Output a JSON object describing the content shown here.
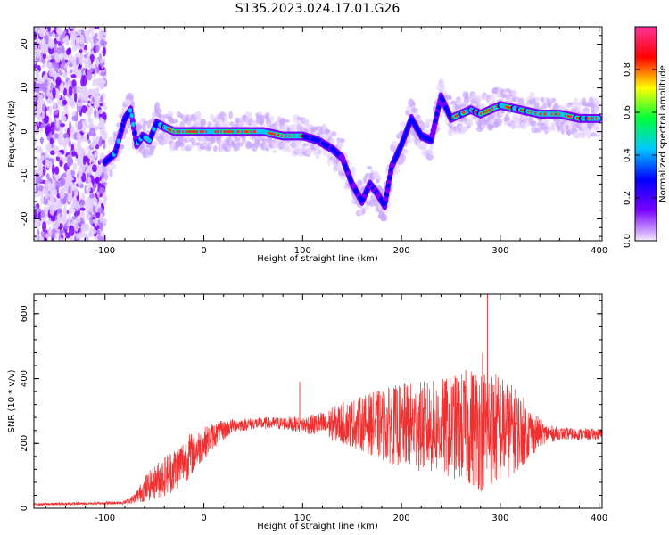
{
  "title": "S135.2023.024.17.01.G26",
  "chart_data": [
    {
      "type": "heatmap",
      "xlabel": "Height of straight line (km)",
      "ylabel": "Frequency (Hz)",
      "xlim": [
        -172,
        403
      ],
      "ylim": [
        -25,
        24
      ],
      "x_ticks": [
        -100,
        0,
        100,
        200,
        300,
        400
      ],
      "y_ticks": [
        -20,
        -10,
        0,
        10,
        20
      ],
      "colorbar": {
        "label": "Normalized spectral amplitude",
        "range": [
          0,
          1
        ],
        "ticks": [
          0.0,
          0.2,
          0.4,
          0.6,
          0.8
        ],
        "colors": [
          "#f4e8ff",
          "#7a00ff",
          "#0000ff",
          "#00c8ff",
          "#00ff3c",
          "#ffff00",
          "#ff0000",
          "#ff3399"
        ]
      },
      "ridge": {
        "x": [
          -100,
          -90,
          -80,
          -74,
          -68,
          -62,
          -55,
          -48,
          -40,
          -30,
          -20,
          0,
          20,
          40,
          60,
          80,
          100,
          115,
          130,
          140,
          150,
          160,
          168,
          175,
          183,
          190,
          200,
          210,
          220,
          230,
          240,
          250,
          260,
          270,
          280,
          290,
          300,
          320,
          340,
          360,
          380,
          400
        ],
        "y": [
          -7,
          -5,
          3,
          5,
          -3,
          -1,
          -2,
          2,
          1,
          0,
          0,
          0,
          0,
          0,
          0,
          -1,
          -1,
          -2,
          -4,
          -6,
          -12,
          -16,
          -12,
          -14,
          -17,
          -8,
          -3,
          3,
          -1,
          -2,
          8,
          3,
          4,
          5,
          4,
          5,
          6,
          5,
          4,
          4,
          3,
          3
        ]
      },
      "noise_region_x": [
        -172,
        -100
      ]
    },
    {
      "type": "line",
      "xlabel": "Height of straight line (km)",
      "ylabel": "SNR (10 * v/v)",
      "xlim": [
        -172,
        403
      ],
      "ylim": [
        0,
        660
      ],
      "x_ticks": [
        -100,
        0,
        100,
        200,
        300,
        400
      ],
      "y_ticks": [
        0,
        200,
        400,
        600
      ],
      "color": "#f03030",
      "envelope": {
        "x": [
          -172,
          -110,
          -80,
          -70,
          -60,
          -45,
          -30,
          -15,
          0,
          10,
          30,
          50,
          80,
          100,
          120,
          140,
          160,
          180,
          200,
          220,
          240,
          260,
          280,
          300,
          320,
          330,
          345,
          360,
          380,
          403
        ],
        "mean": [
          12,
          15,
          18,
          30,
          60,
          90,
          120,
          160,
          200,
          225,
          255,
          262,
          262,
          258,
          258,
          262,
          262,
          258,
          255,
          252,
          250,
          250,
          250,
          245,
          240,
          235,
          230,
          230,
          228,
          228
        ],
        "amp": [
          4,
          4,
          6,
          15,
          40,
          60,
          70,
          70,
          50,
          40,
          22,
          18,
          20,
          25,
          40,
          65,
          85,
          110,
          130,
          140,
          150,
          170,
          200,
          170,
          120,
          80,
          30,
          20,
          18,
          18
        ]
      },
      "spikes": [
        {
          "x": 97,
          "y": 390
        },
        {
          "x": 282,
          "y": 480
        },
        {
          "x": 287,
          "y": 660
        }
      ]
    }
  ]
}
